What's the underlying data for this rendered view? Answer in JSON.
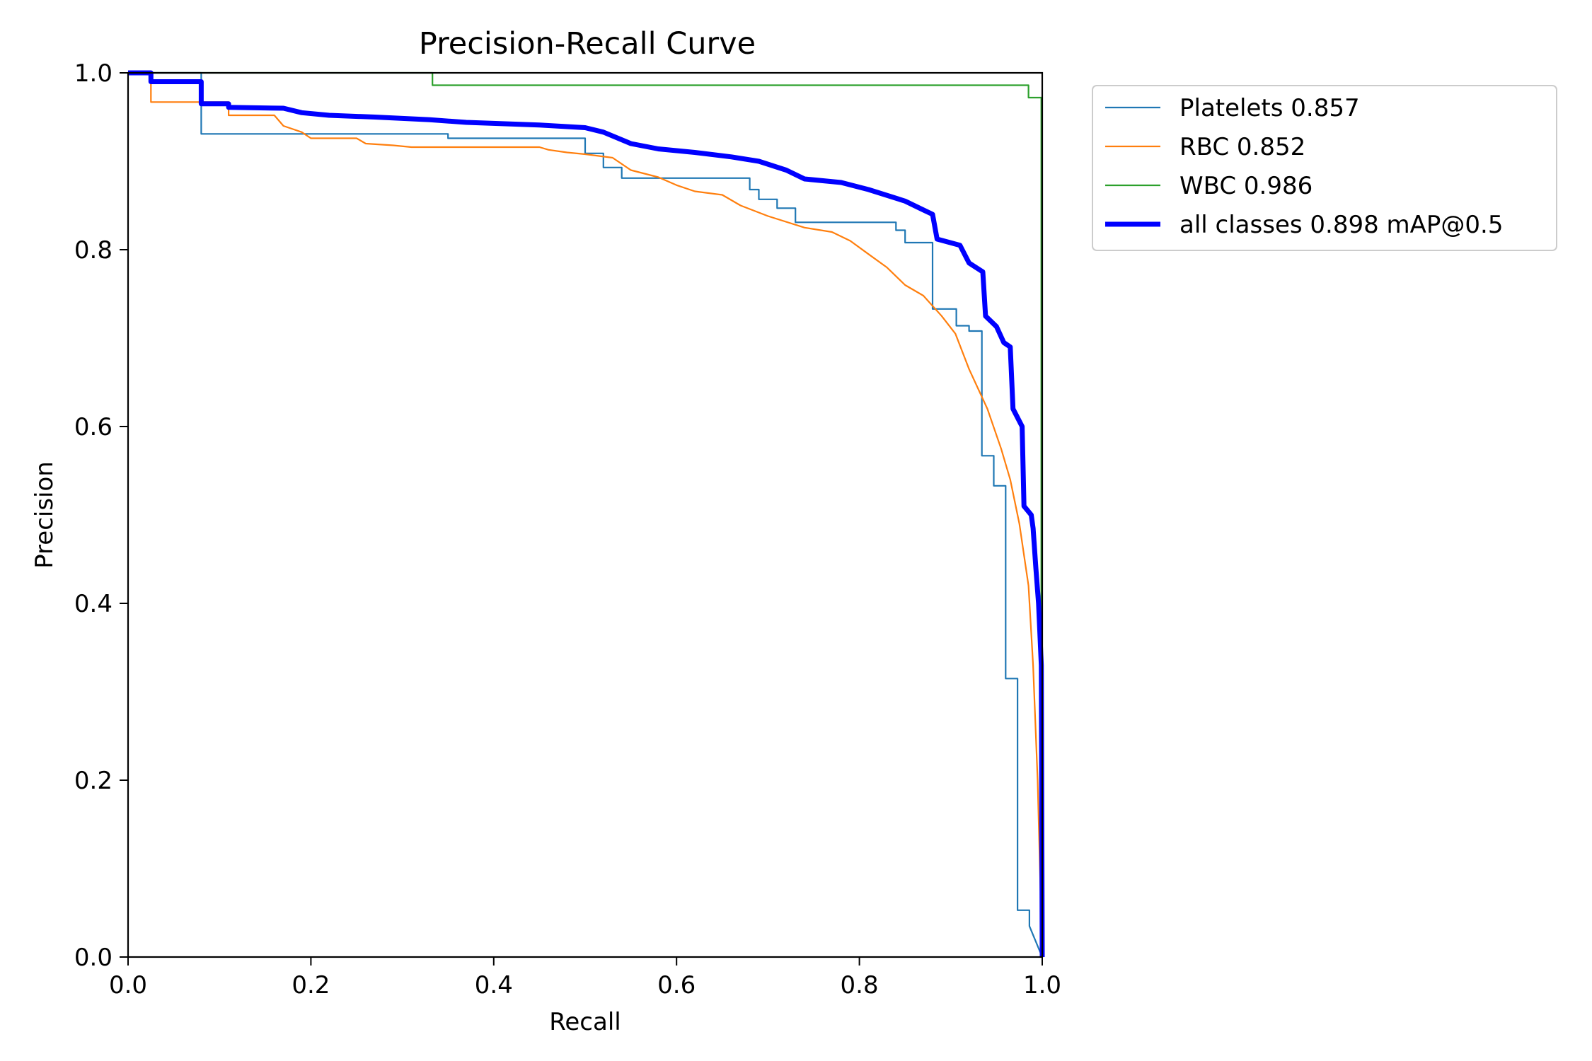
{
  "chart_data": {
    "type": "line",
    "title": "Precision-Recall Curve",
    "xlabel": "Recall",
    "ylabel": "Precision",
    "xlim": [
      0,
      1
    ],
    "ylim": [
      0,
      1
    ],
    "xticks": [
      0,
      0.2,
      0.4,
      0.6,
      0.8,
      1.0
    ],
    "xtick_labels": [
      "0.0",
      "0.2",
      "0.4",
      "0.6",
      "0.8",
      "1.0"
    ],
    "yticks": [
      0,
      0.2,
      0.4,
      0.6,
      0.8,
      1.0
    ],
    "ytick_labels": [
      "0.0",
      "0.2",
      "0.4",
      "0.6",
      "0.8",
      "1.0"
    ],
    "grid": false,
    "legend_position": "outside-top-right",
    "series": [
      {
        "name": "Platelets 0.857",
        "color": "#1f77b4",
        "weight": "thin",
        "points": [
          [
            0,
            1.0
          ],
          [
            0.08,
            1.0
          ],
          [
            0.08,
            0.931
          ],
          [
            0.35,
            0.931
          ],
          [
            0.35,
            0.926
          ],
          [
            0.5,
            0.926
          ],
          [
            0.5,
            0.909
          ],
          [
            0.52,
            0.909
          ],
          [
            0.52,
            0.893
          ],
          [
            0.54,
            0.893
          ],
          [
            0.54,
            0.881
          ],
          [
            0.68,
            0.881
          ],
          [
            0.68,
            0.868
          ],
          [
            0.69,
            0.868
          ],
          [
            0.69,
            0.857
          ],
          [
            0.71,
            0.857
          ],
          [
            0.71,
            0.847
          ],
          [
            0.73,
            0.847
          ],
          [
            0.73,
            0.831
          ],
          [
            0.84,
            0.831
          ],
          [
            0.84,
            0.822
          ],
          [
            0.85,
            0.822
          ],
          [
            0.85,
            0.808
          ],
          [
            0.88,
            0.808
          ],
          [
            0.88,
            0.733
          ],
          [
            0.906,
            0.733
          ],
          [
            0.906,
            0.714
          ],
          [
            0.92,
            0.714
          ],
          [
            0.92,
            0.708
          ],
          [
            0.934,
            0.708
          ],
          [
            0.934,
            0.567
          ],
          [
            0.947,
            0.567
          ],
          [
            0.947,
            0.533
          ],
          [
            0.96,
            0.533
          ],
          [
            0.96,
            0.315
          ],
          [
            0.973,
            0.315
          ],
          [
            0.973,
            0.053
          ],
          [
            0.986,
            0.053
          ],
          [
            0.986,
            0.035
          ],
          [
            1.0,
            0.0
          ]
        ]
      },
      {
        "name": "RBC 0.852",
        "color": "#ff7f0e",
        "weight": "thin",
        "points": [
          [
            0,
            1.0
          ],
          [
            0.025,
            1.0
          ],
          [
            0.025,
            0.967
          ],
          [
            0.11,
            0.967
          ],
          [
            0.11,
            0.952
          ],
          [
            0.16,
            0.952
          ],
          [
            0.17,
            0.94
          ],
          [
            0.19,
            0.933
          ],
          [
            0.2,
            0.926
          ],
          [
            0.25,
            0.926
          ],
          [
            0.26,
            0.92
          ],
          [
            0.29,
            0.918
          ],
          [
            0.31,
            0.916
          ],
          [
            0.45,
            0.916
          ],
          [
            0.46,
            0.913
          ],
          [
            0.48,
            0.91
          ],
          [
            0.5,
            0.908
          ],
          [
            0.53,
            0.904
          ],
          [
            0.55,
            0.89
          ],
          [
            0.58,
            0.882
          ],
          [
            0.6,
            0.873
          ],
          [
            0.62,
            0.866
          ],
          [
            0.65,
            0.862
          ],
          [
            0.67,
            0.85
          ],
          [
            0.7,
            0.838
          ],
          [
            0.74,
            0.825
          ],
          [
            0.77,
            0.82
          ],
          [
            0.79,
            0.81
          ],
          [
            0.81,
            0.795
          ],
          [
            0.83,
            0.78
          ],
          [
            0.85,
            0.76
          ],
          [
            0.87,
            0.748
          ],
          [
            0.89,
            0.725
          ],
          [
            0.905,
            0.705
          ],
          [
            0.92,
            0.665
          ],
          [
            0.94,
            0.62
          ],
          [
            0.955,
            0.575
          ],
          [
            0.965,
            0.54
          ],
          [
            0.975,
            0.49
          ],
          [
            0.985,
            0.42
          ],
          [
            0.99,
            0.33
          ],
          [
            0.995,
            0.2
          ],
          [
            1.0,
            0.0
          ]
        ]
      },
      {
        "name": "WBC 0.986",
        "color": "#2ca02c",
        "weight": "thin",
        "points": [
          [
            0,
            1.0
          ],
          [
            0.333,
            1.0
          ],
          [
            0.333,
            0.986
          ],
          [
            0.985,
            0.986
          ],
          [
            0.985,
            0.972
          ],
          [
            0.999,
            0.972
          ],
          [
            0.999,
            0.0
          ]
        ]
      },
      {
        "name": "all classes 0.898 mAP@0.5",
        "color": "#0000ff",
        "weight": "thick",
        "points": [
          [
            0,
            1.0
          ],
          [
            0.025,
            1.0
          ],
          [
            0.025,
            0.99
          ],
          [
            0.08,
            0.99
          ],
          [
            0.08,
            0.965
          ],
          [
            0.11,
            0.965
          ],
          [
            0.11,
            0.961
          ],
          [
            0.17,
            0.96
          ],
          [
            0.19,
            0.955
          ],
          [
            0.22,
            0.952
          ],
          [
            0.27,
            0.95
          ],
          [
            0.33,
            0.947
          ],
          [
            0.37,
            0.944
          ],
          [
            0.45,
            0.941
          ],
          [
            0.5,
            0.938
          ],
          [
            0.52,
            0.933
          ],
          [
            0.55,
            0.92
          ],
          [
            0.58,
            0.914
          ],
          [
            0.62,
            0.91
          ],
          [
            0.66,
            0.905
          ],
          [
            0.69,
            0.9
          ],
          [
            0.72,
            0.89
          ],
          [
            0.74,
            0.88
          ],
          [
            0.78,
            0.876
          ],
          [
            0.81,
            0.868
          ],
          [
            0.85,
            0.855
          ],
          [
            0.87,
            0.845
          ],
          [
            0.88,
            0.84
          ],
          [
            0.885,
            0.812
          ],
          [
            0.91,
            0.805
          ],
          [
            0.92,
            0.785
          ],
          [
            0.935,
            0.775
          ],
          [
            0.938,
            0.725
          ],
          [
            0.95,
            0.713
          ],
          [
            0.958,
            0.695
          ],
          [
            0.965,
            0.69
          ],
          [
            0.968,
            0.62
          ],
          [
            0.978,
            0.6
          ],
          [
            0.98,
            0.51
          ],
          [
            0.988,
            0.5
          ],
          [
            0.99,
            0.485
          ],
          [
            0.993,
            0.44
          ],
          [
            0.996,
            0.4
          ],
          [
            0.999,
            0.33
          ],
          [
            1.0,
            0.0
          ]
        ]
      }
    ]
  }
}
